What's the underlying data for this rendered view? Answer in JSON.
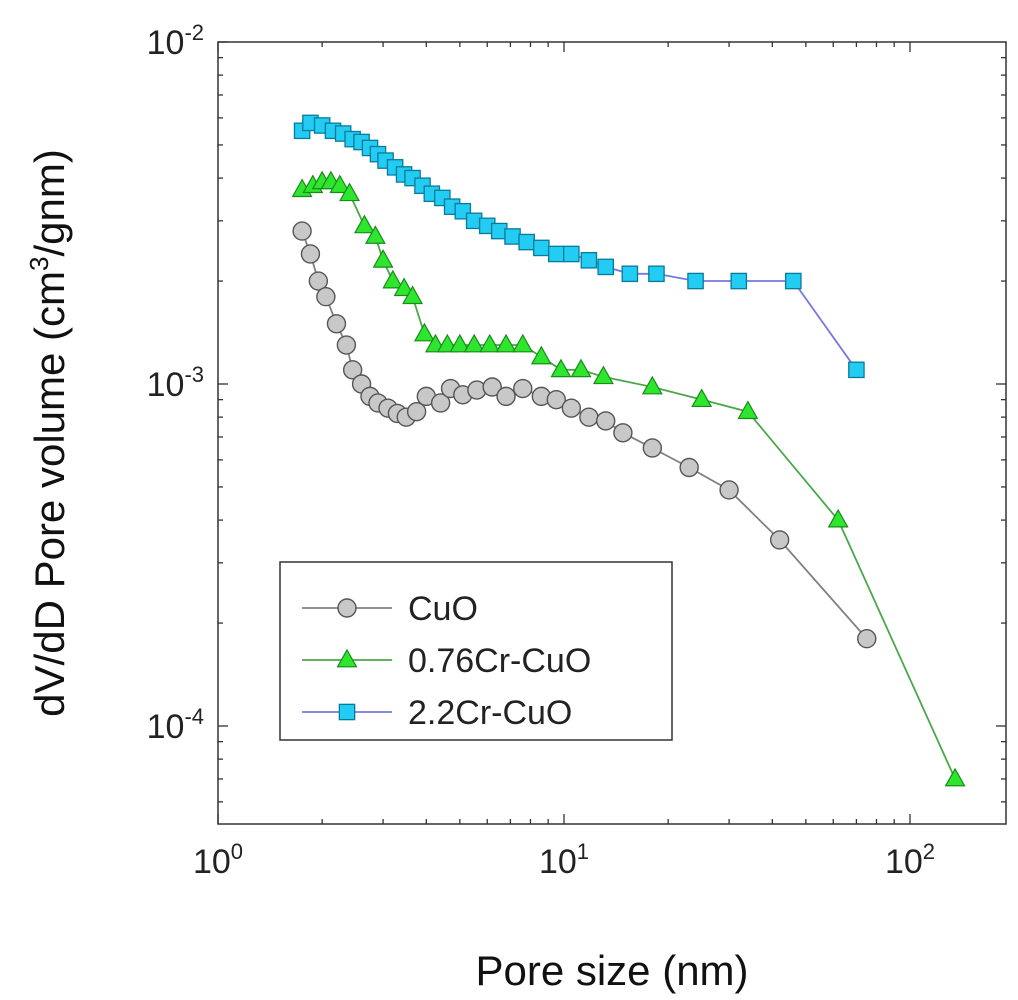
{
  "chart_data": {
    "type": "scatter",
    "xscale": "log",
    "yscale": "log",
    "xlabel": "Pore size (nm)",
    "ylabel": "dV/dD Pore volume (cm",
    "ylabel_sup": "3",
    "ylabel_end": "/gnm)",
    "xlim": [
      1,
      200
    ],
    "ylim": [
      6e-05,
      0.01
    ],
    "xticks": [
      {
        "value": 1,
        "base": "10",
        "exp": "0"
      },
      {
        "value": 10,
        "base": "10",
        "exp": "1"
      },
      {
        "value": 100,
        "base": "10",
        "exp": "2"
      }
    ],
    "yticks": [
      {
        "value": 0.01,
        "base": "10",
        "exp": "-2"
      },
      {
        "value": 0.001,
        "base": "10",
        "exp": "-3"
      },
      {
        "value": 0.0001,
        "base": "10",
        "exp": "-4"
      }
    ],
    "legend_position": "bottom-left",
    "series": [
      {
        "name": "CuO",
        "marker": "circle",
        "color": "#c8c8c8",
        "stroke": "#555555",
        "line": "#808080",
        "points": [
          [
            1.75,
            0.0028
          ],
          [
            1.85,
            0.0024
          ],
          [
            1.95,
            0.002
          ],
          [
            2.05,
            0.0018
          ],
          [
            2.2,
            0.0015
          ],
          [
            2.35,
            0.0013
          ],
          [
            2.45,
            0.0011
          ],
          [
            2.6,
            0.001
          ],
          [
            2.75,
            0.00092
          ],
          [
            2.9,
            0.00088
          ],
          [
            3.1,
            0.00085
          ],
          [
            3.3,
            0.00082
          ],
          [
            3.5,
            0.0008
          ],
          [
            3.75,
            0.00083
          ],
          [
            4.0,
            0.00092
          ],
          [
            4.4,
            0.00088
          ],
          [
            4.7,
            0.00097
          ],
          [
            5.1,
            0.00093
          ],
          [
            5.6,
            0.00096
          ],
          [
            6.2,
            0.00098
          ],
          [
            6.8,
            0.00092
          ],
          [
            7.6,
            0.00097
          ],
          [
            8.6,
            0.00092
          ],
          [
            9.5,
            0.0009
          ],
          [
            10.5,
            0.00085
          ],
          [
            11.8,
            0.0008
          ],
          [
            13.2,
            0.00078
          ],
          [
            14.8,
            0.00072
          ],
          [
            18,
            0.00065
          ],
          [
            23,
            0.00057
          ],
          [
            30,
            0.00049
          ],
          [
            42,
            0.00035
          ],
          [
            75,
            0.00018
          ]
        ]
      },
      {
        "name": "0.76Cr-CuO",
        "marker": "triangle",
        "color": "#2ee62e",
        "stroke": "#1a8a1a",
        "line": "#4aa84a",
        "points": [
          [
            1.75,
            0.0037
          ],
          [
            1.88,
            0.0038
          ],
          [
            2.0,
            0.0039
          ],
          [
            2.12,
            0.0039
          ],
          [
            2.25,
            0.0038
          ],
          [
            2.4,
            0.0036
          ],
          [
            2.65,
            0.0029
          ],
          [
            2.85,
            0.0027
          ],
          [
            3.0,
            0.0023
          ],
          [
            3.2,
            0.002
          ],
          [
            3.45,
            0.0019
          ],
          [
            3.65,
            0.0018
          ],
          [
            3.95,
            0.0014
          ],
          [
            4.25,
            0.0013
          ],
          [
            4.6,
            0.0013
          ],
          [
            5.0,
            0.0013
          ],
          [
            5.5,
            0.0013
          ],
          [
            6.1,
            0.0013
          ],
          [
            6.8,
            0.0013
          ],
          [
            7.6,
            0.0013
          ],
          [
            8.6,
            0.0012
          ],
          [
            9.8,
            0.0011
          ],
          [
            11.2,
            0.0011
          ],
          [
            13,
            0.00105
          ],
          [
            18,
            0.00098
          ],
          [
            25,
            0.0009
          ],
          [
            34,
            0.00083
          ],
          [
            62,
            0.0004
          ],
          [
            135,
            7e-05
          ]
        ]
      },
      {
        "name": "2.2Cr-CuO",
        "marker": "square",
        "color": "#22ccf2",
        "stroke": "#0a7a9a",
        "line": "#7777dd",
        "points": [
          [
            1.75,
            0.0055
          ],
          [
            1.85,
            0.0058
          ],
          [
            2.0,
            0.0057
          ],
          [
            2.15,
            0.0055
          ],
          [
            2.3,
            0.0054
          ],
          [
            2.45,
            0.0052
          ],
          [
            2.6,
            0.0051
          ],
          [
            2.75,
            0.0049
          ],
          [
            2.9,
            0.0047
          ],
          [
            3.05,
            0.0045
          ],
          [
            3.25,
            0.0043
          ],
          [
            3.45,
            0.0041
          ],
          [
            3.65,
            0.004
          ],
          [
            3.9,
            0.0038
          ],
          [
            4.15,
            0.0036
          ],
          [
            4.45,
            0.0035
          ],
          [
            4.75,
            0.0033
          ],
          [
            5.1,
            0.0032
          ],
          [
            5.5,
            0.003
          ],
          [
            6.0,
            0.0029
          ],
          [
            6.5,
            0.0028
          ],
          [
            7.1,
            0.0027
          ],
          [
            7.8,
            0.0026
          ],
          [
            8.6,
            0.0025
          ],
          [
            9.5,
            0.0024
          ],
          [
            10.5,
            0.0024
          ],
          [
            11.8,
            0.0023
          ],
          [
            13.2,
            0.0022
          ],
          [
            15.5,
            0.0021
          ],
          [
            18.5,
            0.0021
          ],
          [
            24,
            0.002
          ],
          [
            32,
            0.002
          ],
          [
            46,
            0.002
          ],
          [
            70,
            0.0011
          ]
        ]
      }
    ]
  }
}
